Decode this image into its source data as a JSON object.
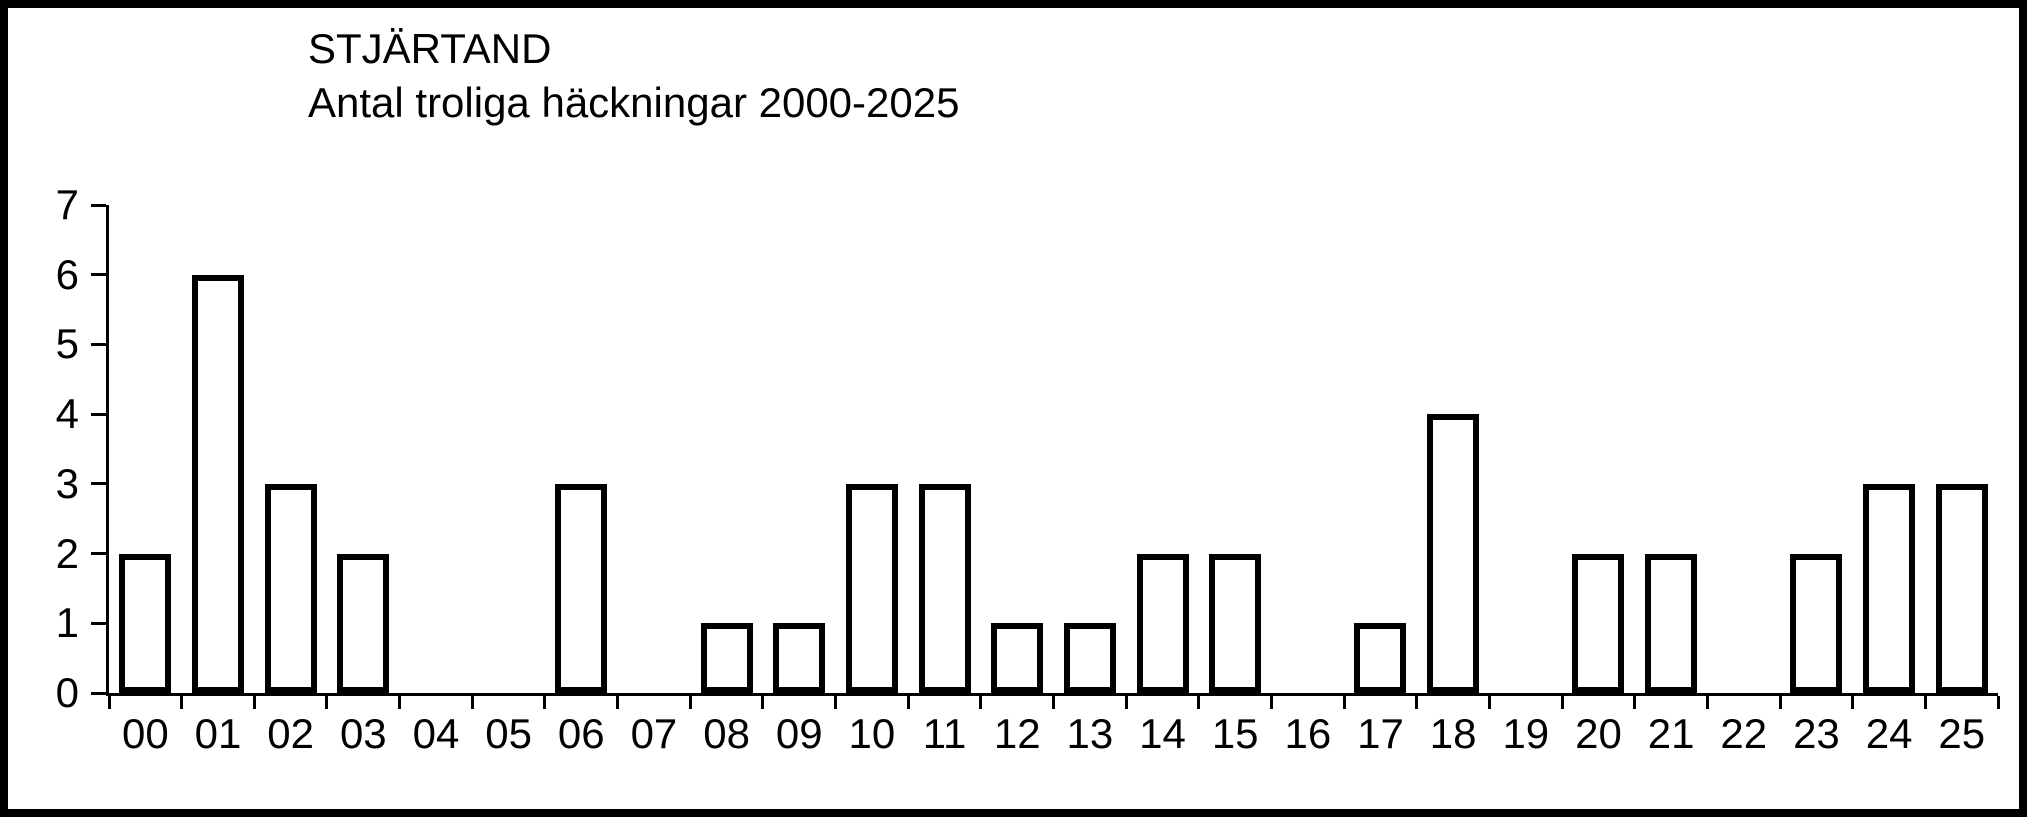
{
  "window": {
    "background": "#ffffff",
    "frame_border_color": "#000000"
  },
  "chart_data": {
    "type": "bar",
    "title": "STJÄRTAND",
    "subtitle": "Antal troliga häckningar 2000-2025",
    "categories": [
      "00",
      "01",
      "02",
      "03",
      "04",
      "05",
      "06",
      "07",
      "08",
      "09",
      "10",
      "11",
      "12",
      "13",
      "14",
      "15",
      "16",
      "17",
      "18",
      "19",
      "20",
      "21",
      "22",
      "23",
      "24",
      "25"
    ],
    "values": [
      2,
      6,
      3,
      2,
      0,
      0,
      3,
      0,
      1,
      1,
      3,
      3,
      1,
      1,
      2,
      2,
      0,
      1,
      4,
      0,
      2,
      2,
      0,
      2,
      3,
      3
    ],
    "xlabel": "",
    "ylabel": "",
    "ylim": [
      0,
      7
    ],
    "yticks": [
      0,
      1,
      2,
      3,
      4,
      5,
      6,
      7
    ],
    "bar_fill": "#ffffff",
    "bar_stroke": "#000000",
    "axis_color": "#000000",
    "grid": false,
    "legend": false,
    "legend_position": "none"
  }
}
